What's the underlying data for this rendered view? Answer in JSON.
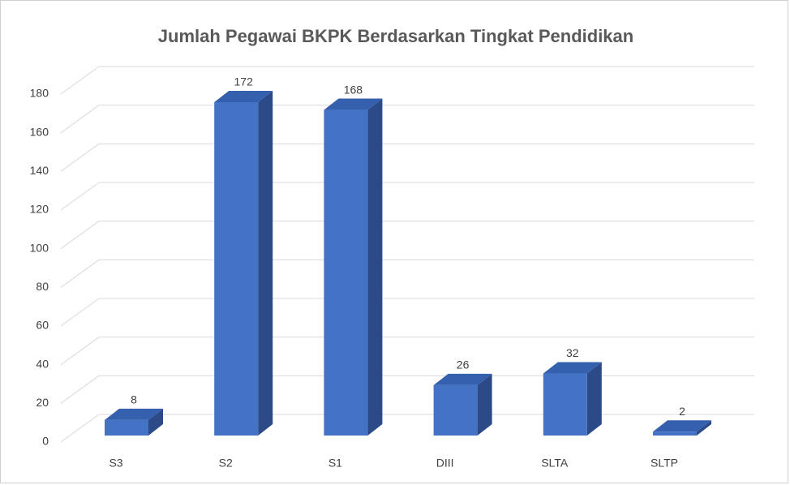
{
  "chart_data": {
    "type": "bar3d",
    "title": "Jumlah Pegawai BKPK Berdasarkan Tingkat Pendidikan",
    "categories": [
      "S3",
      "S2",
      "S1",
      "DIII",
      "SLTA",
      "SLTP"
    ],
    "values": [
      8,
      172,
      168,
      26,
      32,
      2
    ],
    "color": "#4472c4",
    "ylim": [
      0,
      180
    ],
    "yticks": [
      0,
      20,
      40,
      60,
      80,
      100,
      120,
      140,
      160,
      180
    ],
    "grid": true
  }
}
